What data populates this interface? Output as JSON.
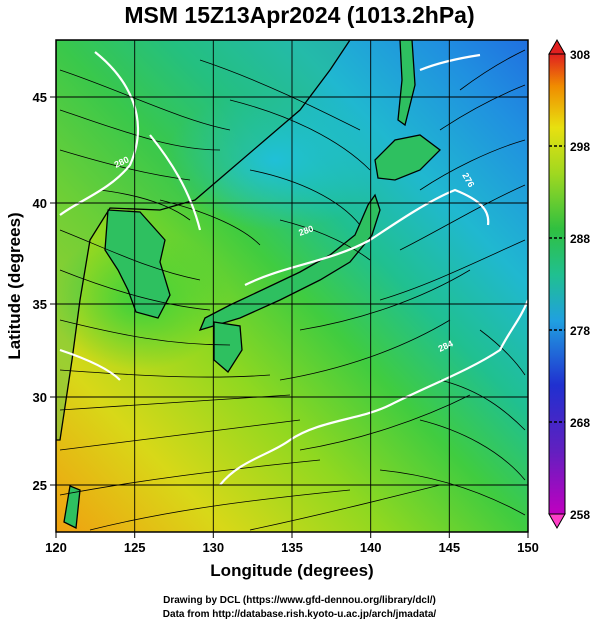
{
  "title": "MSM 15Z13Apr2024 (1013.2hPa)",
  "axes": {
    "xlabel": "Longitude (degrees)",
    "ylabel": "Latitude  (degrees)",
    "xlim": [
      120,
      150
    ],
    "ylim": [
      22.4,
      47.6
    ],
    "x_ticks": [
      "120",
      "125",
      "130",
      "135",
      "140",
      "145",
      "150"
    ],
    "y_ticks": [
      "25",
      "30",
      "35",
      "40",
      "45"
    ],
    "grid": true
  },
  "colorbar": {
    "range": [
      258,
      308
    ],
    "tick_labels": [
      "308",
      "298",
      "288",
      "278",
      "268",
      "258"
    ],
    "colors": [
      "#c000c0",
      "#2020d0",
      "#20b0e0",
      "#20c060",
      "#60d020",
      "#e0e010",
      "#f09000",
      "#e02020"
    ]
  },
  "contour_labels": [
    {
      "text": "280",
      "lon": 136,
      "lat": 37.5
    },
    {
      "text": "284",
      "lon": 143,
      "lat": 33.8
    },
    {
      "text": "276",
      "lon": 146.5,
      "lat": 41.3
    },
    {
      "text": "280",
      "lon": 125.6,
      "lat": 41.4
    }
  ],
  "colors": {
    "streamline": "#000000",
    "contour": "#ffffff",
    "coast": "#000000"
  },
  "credits": {
    "line1": "Drawing by DCL (https://www.gfd-dennou.org/library/dcl/)",
    "line2": "Data from http://database.rish.kyoto-u.ac.jp/arch/jmadata/"
  }
}
